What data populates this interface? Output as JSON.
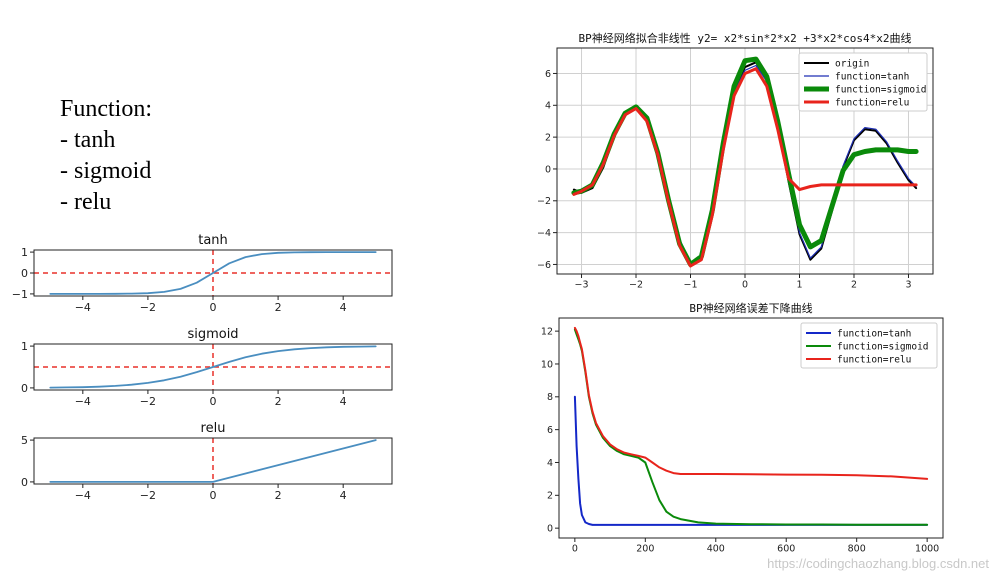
{
  "slide": {
    "heading": "Function:",
    "items": [
      "- tanh",
      "- sigmoid",
      "- relu"
    ],
    "watermark": "https://codingchaozhang.blog.csdn.net"
  },
  "chart_data": [
    {
      "type": "line",
      "title": "tanh",
      "x": [
        -5,
        -4.5,
        -4,
        -3.5,
        -3,
        -2.5,
        -2,
        -1.5,
        -1,
        -0.5,
        0,
        0.5,
        1,
        1.5,
        2,
        2.5,
        3,
        3.5,
        4,
        4.5,
        5
      ],
      "series": [
        {
          "values": [
            -1,
            -1,
            -1,
            -0.998,
            -0.995,
            -0.987,
            -0.964,
            -0.905,
            -0.762,
            -0.462,
            0,
            0.462,
            0.762,
            0.905,
            0.964,
            0.987,
            0.995,
            0.998,
            1,
            1,
            1
          ],
          "color": "#4a8ec0"
        }
      ],
      "hlines": [
        0
      ],
      "vlines": [
        0
      ],
      "ref_color": "#e8302a",
      "xlim": [
        -5.5,
        5.5
      ],
      "ylim": [
        -1.1,
        1.1
      ],
      "xticks": [
        -4,
        -2,
        0,
        2,
        4
      ],
      "yticks": [
        -1,
        0,
        1
      ],
      "yticklabels": [
        "−1",
        "0",
        "1"
      ]
    },
    {
      "type": "line",
      "title": "sigmoid",
      "x": [
        -5,
        -4.5,
        -4,
        -3.5,
        -3,
        -2.5,
        -2,
        -1.5,
        -1,
        -0.5,
        0,
        0.5,
        1,
        1.5,
        2,
        2.5,
        3,
        3.5,
        4,
        4.5,
        5
      ],
      "series": [
        {
          "values": [
            0.007,
            0.011,
            0.018,
            0.029,
            0.047,
            0.076,
            0.119,
            0.182,
            0.269,
            0.378,
            0.5,
            0.622,
            0.731,
            0.818,
            0.881,
            0.924,
            0.953,
            0.971,
            0.982,
            0.989,
            0.993
          ],
          "color": "#4a8ec0"
        }
      ],
      "hlines": [
        0.5
      ],
      "vlines": [
        0
      ],
      "ref_color": "#e8302a",
      "xlim": [
        -5.5,
        5.5
      ],
      "ylim": [
        -0.05,
        1.05
      ],
      "xticks": [
        -4,
        -2,
        0,
        2,
        4
      ],
      "yticks": [
        0,
        1
      ],
      "yticklabels": [
        "0",
        "1"
      ]
    },
    {
      "type": "line",
      "title": "relu",
      "x": [
        -5,
        0,
        5
      ],
      "series": [
        {
          "values": [
            0,
            0,
            5
          ],
          "color": "#4a8ec0"
        }
      ],
      "hlines": [],
      "vlines": [
        0
      ],
      "ref_color": "#e8302a",
      "xlim": [
        -5.5,
        5.5
      ],
      "ylim": [
        -0.25,
        5.25
      ],
      "xticks": [
        -4,
        -2,
        0,
        2,
        4
      ],
      "yticks": [
        0,
        5
      ],
      "yticklabels": [
        "0",
        "5"
      ]
    },
    {
      "type": "line",
      "title": "BP神经网络拟合非线性  y2= x2*sin*2*x2 +3*x2*cos4*x2曲线",
      "x": [
        -3.14,
        -3.0,
        -2.8,
        -2.6,
        -2.4,
        -2.2,
        -2.0,
        -1.8,
        -1.6,
        -1.4,
        -1.2,
        -1.0,
        -0.8,
        -0.6,
        -0.4,
        -0.2,
        0.0,
        0.2,
        0.4,
        0.6,
        0.8,
        1.0,
        1.2,
        1.4,
        1.6,
        1.8,
        2.0,
        2.2,
        2.4,
        2.6,
        2.8,
        3.0,
        3.14
      ],
      "series": [
        {
          "name": "origin",
          "color": "#000000",
          "width": 2,
          "values": [
            -1.3,
            -1.5,
            -1.2,
            0.1,
            2.1,
            3.5,
            3.8,
            3.1,
            1.1,
            -1.8,
            -4.5,
            -6.0,
            -5.6,
            -2.8,
            1.4,
            5.0,
            6.4,
            6.7,
            5.6,
            2.9,
            -0.8,
            -4.1,
            -5.7,
            -5.0,
            -2.6,
            0.1,
            1.8,
            2.5,
            2.4,
            1.6,
            0.4,
            -0.7,
            -1.2
          ]
        },
        {
          "name": "function=tanh",
          "color": "#1f2fb3",
          "width": 1.2,
          "values": [
            -1.4,
            -1.4,
            -1.1,
            0.2,
            2.1,
            3.4,
            3.8,
            3.2,
            1.2,
            -1.7,
            -4.4,
            -5.9,
            -5.5,
            -2.7,
            1.3,
            4.8,
            6.2,
            6.5,
            5.5,
            2.8,
            -0.8,
            -4.0,
            -5.6,
            -4.9,
            -2.5,
            0.2,
            1.9,
            2.6,
            2.5,
            1.7,
            0.5,
            -0.6,
            -1.1
          ]
        },
        {
          "name": "function=sigmoid",
          "color": "#0a8a0a",
          "width": 5,
          "values": [
            -1.5,
            -1.4,
            -1.0,
            0.4,
            2.2,
            3.5,
            3.9,
            3.2,
            1.0,
            -2.0,
            -4.7,
            -6.0,
            -5.5,
            -2.6,
            1.6,
            5.2,
            6.8,
            6.9,
            5.8,
            3.0,
            -0.3,
            -3.5,
            -4.9,
            -4.5,
            -2.3,
            -0.1,
            0.9,
            1.1,
            1.2,
            1.2,
            1.2,
            1.1,
            1.1
          ]
        },
        {
          "name": "function=relu",
          "color": "#e8241c",
          "width": 3,
          "values": [
            -1.6,
            -1.4,
            -1.0,
            0.3,
            2.1,
            3.4,
            3.8,
            3.0,
            0.9,
            -2.1,
            -4.8,
            -6.1,
            -5.7,
            -2.9,
            1.2,
            4.6,
            6.0,
            6.3,
            5.2,
            2.5,
            -0.6,
            -1.3,
            -1.1,
            -1.0,
            -1.0,
            -1.0,
            -1.0,
            -1.0,
            -1.0,
            -1.0,
            -1.0,
            -1.0,
            -1.0
          ]
        }
      ],
      "xlim": [
        -3.45,
        3.45
      ],
      "ylim": [
        -6.6,
        7.6
      ],
      "xticks": [
        -3,
        -2,
        -1,
        0,
        1,
        2,
        3
      ],
      "yticks": [
        -6,
        -4,
        -2,
        0,
        2,
        4,
        6
      ],
      "grid": true,
      "legend": "top-right"
    },
    {
      "type": "line",
      "title": "BP神经网络误差下降曲线",
      "x": [
        0,
        5,
        10,
        15,
        20,
        30,
        40,
        50,
        60,
        80,
        100,
        120,
        140,
        160,
        180,
        200,
        220,
        240,
        260,
        280,
        300,
        350,
        400,
        500,
        600,
        700,
        800,
        900,
        1000
      ],
      "series": [
        {
          "name": "function=tanh",
          "color": "#1428c8",
          "width": 2,
          "values": [
            8.0,
            5.0,
            3.0,
            1.5,
            0.8,
            0.35,
            0.25,
            0.2,
            0.2,
            0.2,
            0.2,
            0.2,
            0.2,
            0.2,
            0.2,
            0.2,
            0.2,
            0.2,
            0.2,
            0.2,
            0.2,
            0.2,
            0.2,
            0.2,
            0.2,
            0.2,
            0.2,
            0.2,
            0.2
          ]
        },
        {
          "name": "function=sigmoid",
          "color": "#0a8a0a",
          "width": 2,
          "values": [
            12.1,
            11.8,
            11.5,
            11.2,
            10.8,
            9.5,
            8.0,
            7.0,
            6.3,
            5.5,
            5.0,
            4.7,
            4.5,
            4.4,
            4.3,
            4.0,
            2.8,
            1.7,
            1.0,
            0.7,
            0.55,
            0.35,
            0.28,
            0.24,
            0.22,
            0.22,
            0.21,
            0.21,
            0.21
          ]
        },
        {
          "name": "function=relu",
          "color": "#e8241c",
          "width": 2,
          "values": [
            12.2,
            12.0,
            11.7,
            11.3,
            10.9,
            9.6,
            8.1,
            7.1,
            6.4,
            5.6,
            5.1,
            4.8,
            4.6,
            4.5,
            4.4,
            4.3,
            4.0,
            3.7,
            3.5,
            3.35,
            3.3,
            3.3,
            3.3,
            3.28,
            3.26,
            3.25,
            3.22,
            3.15,
            3.0
          ]
        }
      ],
      "xlim": [
        -45,
        1045
      ],
      "ylim": [
        -0.6,
        12.8
      ],
      "xticks": [
        0,
        200,
        400,
        600,
        800,
        1000
      ],
      "yticks": [
        0,
        2,
        4,
        6,
        8,
        10,
        12
      ],
      "grid": false,
      "legend": "top-right"
    }
  ]
}
